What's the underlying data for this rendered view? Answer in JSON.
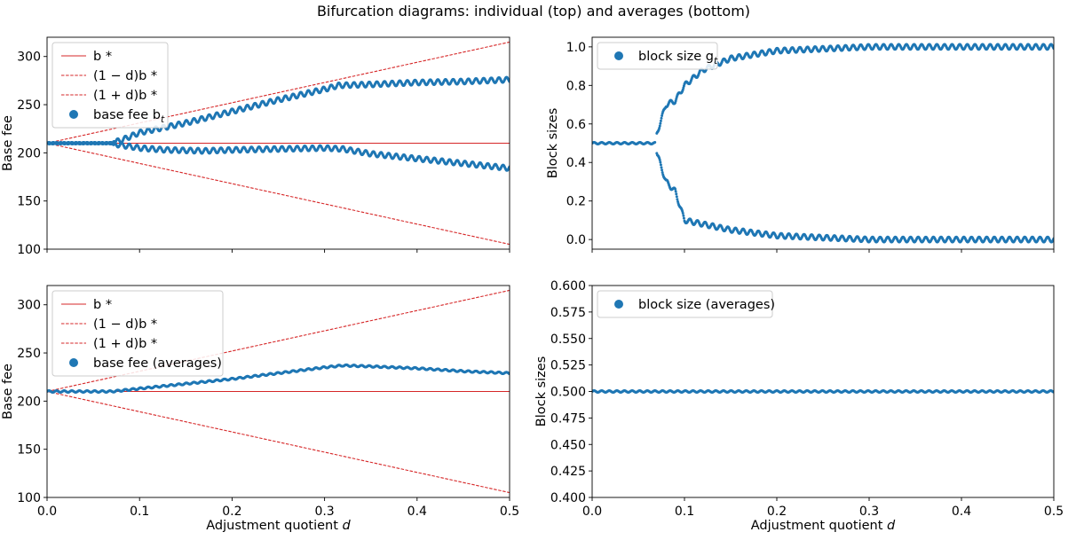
{
  "figure": {
    "title": "Bifurcation diagrams: individual (top) and averages (bottom)"
  },
  "colors": {
    "scatter": "#1f77b4",
    "reference": "#d62728",
    "axis": "#000000"
  },
  "chart_data": [
    {
      "id": "top-left",
      "type": "scatter",
      "title": "",
      "xlabel": "",
      "ylabel": "Base fee",
      "xlim": [
        0.0,
        0.5
      ],
      "ylim": [
        100,
        320
      ],
      "xticks": [
        0.0,
        0.1,
        0.2,
        0.3,
        0.4,
        0.5
      ],
      "xtick_labels_visible": false,
      "yticks": [
        100,
        150,
        200,
        250,
        300
      ],
      "legend_position": "top-left",
      "reference_lines": [
        {
          "name": "b*",
          "label": "b *",
          "style": "solid",
          "x": [
            0.0,
            0.5
          ],
          "y": [
            210,
            210
          ]
        },
        {
          "name": "lower",
          "label": "(1 − d)b *",
          "style": "dashed",
          "x": [
            0.0,
            0.5
          ],
          "y": [
            210,
            105
          ]
        },
        {
          "name": "upper",
          "label": "(1 + d)b *",
          "style": "dashed",
          "x": [
            0.0,
            0.5
          ],
          "y": [
            210,
            315
          ]
        }
      ],
      "series": [
        {
          "name": "base fee b_t",
          "label": "base fee b",
          "label_sub": "t",
          "branches": [
            {
              "x": [
                0.0,
                0.068,
                0.08,
                0.1,
                0.15,
                0.2,
                0.25,
                0.3,
                0.315,
                0.35,
                0.4,
                0.45,
                0.5
              ],
              "y": [
                210,
                210,
                213,
                221,
                231,
                243,
                255,
                266,
                270,
                271,
                273,
                274,
                276
              ]
            },
            {
              "x": [
                0.0,
                0.068,
                0.08,
                0.1,
                0.13,
                0.17,
                0.2,
                0.25,
                0.3,
                0.32,
                0.35,
                0.4,
                0.45,
                0.5
              ],
              "y": [
                210,
                210,
                208,
                205,
                203,
                202,
                203,
                204,
                205,
                204,
                199,
                194,
                189,
                184
              ]
            }
          ]
        }
      ]
    },
    {
      "id": "top-right",
      "type": "scatter",
      "title": "",
      "xlabel": "",
      "ylabel": "Block sizes",
      "xlim": [
        0.0,
        0.5
      ],
      "ylim": [
        -0.05,
        1.05
      ],
      "xticks": [
        0.0,
        0.1,
        0.2,
        0.3,
        0.4,
        0.5
      ],
      "xtick_labels_visible": false,
      "yticks": [
        0.0,
        0.2,
        0.4,
        0.6,
        0.8,
        1.0
      ],
      "legend_position": "top-left",
      "series": [
        {
          "name": "block size g_t",
          "label": "block size g",
          "label_sub": "t",
          "branches": [
            {
              "x": [
                0.0,
                0.068
              ],
              "y": [
                0.5,
                0.5
              ]
            },
            {
              "x": [
                0.07,
                0.08,
                0.09,
                0.1,
                0.12,
                0.15,
                0.2,
                0.25,
                0.3,
                0.5
              ],
              "y": [
                0.55,
                0.7,
                0.72,
                0.8,
                0.88,
                0.94,
                0.98,
                0.99,
                1.0,
                1.0
              ]
            },
            {
              "x": [
                0.07,
                0.08,
                0.09,
                0.1,
                0.12,
                0.15,
                0.2,
                0.25,
                0.3,
                0.5
              ],
              "y": [
                0.45,
                0.3,
                0.25,
                0.1,
                0.08,
                0.05,
                0.02,
                0.01,
                0.0,
                0.0
              ]
            }
          ]
        }
      ]
    },
    {
      "id": "bottom-left",
      "type": "scatter",
      "title": "",
      "xlabel": "Adjustment quotient d",
      "ylabel": "Base fee",
      "xlim": [
        0.0,
        0.5
      ],
      "ylim": [
        100,
        320
      ],
      "xticks": [
        0.0,
        0.1,
        0.2,
        0.3,
        0.4,
        0.5
      ],
      "xtick_labels_visible": true,
      "yticks": [
        100,
        150,
        200,
        250,
        300
      ],
      "legend_position": "top-left",
      "reference_lines": [
        {
          "name": "b*",
          "label": "b *",
          "style": "solid",
          "x": [
            0.0,
            0.5
          ],
          "y": [
            210,
            210
          ]
        },
        {
          "name": "lower",
          "label": "(1 − d)b *",
          "style": "dashed",
          "x": [
            0.0,
            0.5
          ],
          "y": [
            210,
            105
          ]
        },
        {
          "name": "upper",
          "label": "(1 + d)b *",
          "style": "dashed",
          "x": [
            0.0,
            0.5
          ],
          "y": [
            210,
            315
          ]
        }
      ],
      "series": [
        {
          "name": "base fee (averages)",
          "label": "base fee (averages)",
          "branches": [
            {
              "x": [
                0.0,
                0.07,
                0.1,
                0.15,
                0.2,
                0.25,
                0.3,
                0.32,
                0.35,
                0.4,
                0.45,
                0.5
              ],
              "y": [
                210,
                210,
                213,
                218,
                223,
                229,
                235,
                237,
                236,
                234,
                231,
                229
              ]
            }
          ]
        }
      ]
    },
    {
      "id": "bottom-right",
      "type": "scatter",
      "title": "",
      "xlabel": "Adjustment quotient d",
      "ylabel": "Block sizes",
      "xlim": [
        0.0,
        0.5
      ],
      "ylim": [
        0.4,
        0.6
      ],
      "xticks": [
        0.0,
        0.1,
        0.2,
        0.3,
        0.4,
        0.5
      ],
      "xtick_labels_visible": true,
      "yticks": [
        0.4,
        0.425,
        0.45,
        0.475,
        0.5,
        0.525,
        0.55,
        0.575,
        0.6
      ],
      "legend_position": "top-left",
      "series": [
        {
          "name": "block size (averages)",
          "label": "block size (averages)",
          "branches": [
            {
              "x": [
                0.0,
                0.5
              ],
              "y": [
                0.5,
                0.5
              ]
            }
          ]
        }
      ]
    }
  ]
}
